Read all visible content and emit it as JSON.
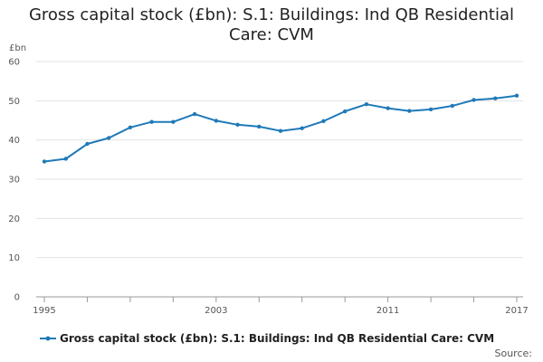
{
  "chart_data": {
    "type": "line",
    "title_lines": [
      "Gross capital stock (£bn): S.1: Buildings: Ind QB Residential",
      "Care: CVM"
    ],
    "ylabel": "£bn",
    "xlabel": "",
    "ylim": [
      0,
      60
    ],
    "yticks": [
      "0",
      "10",
      "20",
      "30",
      "40",
      "50",
      "60"
    ],
    "xtick_labels": [
      "1995",
      "2003",
      "2011",
      "2017"
    ],
    "grid": true,
    "legend_position": "bottom",
    "source_label": "Source:",
    "color": "#1f7ab8",
    "series": [
      {
        "name": "Gross capital stock (£bn): S.1: Buildings: Ind QB Residential Care: CVM",
        "x": [
          1995,
          1996,
          1997,
          1998,
          1999,
          2000,
          2001,
          2002,
          2003,
          2004,
          2005,
          2006,
          2007,
          2008,
          2009,
          2010,
          2011,
          2012,
          2013,
          2014,
          2015,
          2016,
          2017
        ],
        "values": [
          34.5,
          35.2,
          39.0,
          40.5,
          43.2,
          44.6,
          44.6,
          46.6,
          44.9,
          43.9,
          43.4,
          42.3,
          43.0,
          44.8,
          47.3,
          49.1,
          48.1,
          47.4,
          47.8,
          48.7,
          50.2,
          50.6,
          51.3
        ]
      }
    ]
  }
}
